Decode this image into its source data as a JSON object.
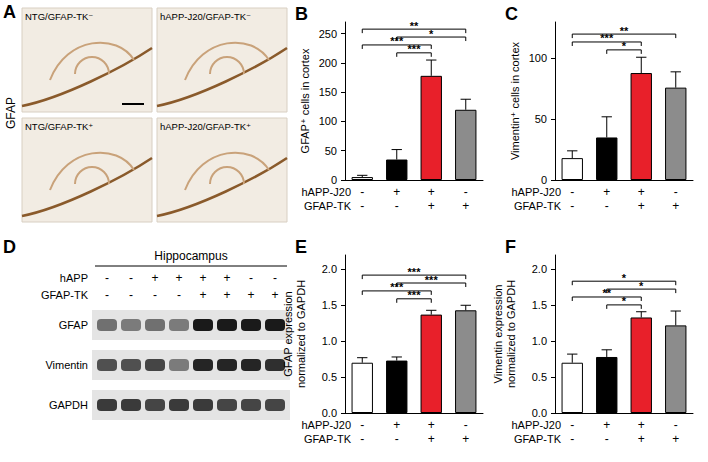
{
  "panels": {
    "A": {
      "letter": "A",
      "stain": "GFAP",
      "images": [
        "NTG/GFAP-TK⁻",
        "hAPP-J20/GFAP-TK⁻",
        "NTG/GFAP-TK⁺",
        "hAPP-J20/GFAP-TK⁺"
      ]
    },
    "D": {
      "letter": "D",
      "title": "Hippocampus",
      "rows": [
        {
          "label": "hAPP",
          "values": [
            "-",
            "-",
            "+",
            "+",
            "+",
            "+",
            "-",
            "-"
          ]
        },
        {
          "label": "GFAP-TK",
          "values": [
            "-",
            "-",
            "-",
            "-",
            "+",
            "+",
            "+",
            "+"
          ]
        }
      ],
      "blots": [
        {
          "label": "GFAP",
          "intensity": [
            0.55,
            0.5,
            0.55,
            0.5,
            0.95,
            0.95,
            0.95,
            0.95
          ]
        },
        {
          "label": "Vimentin",
          "intensity": [
            0.7,
            0.7,
            0.75,
            0.5,
            0.9,
            0.9,
            0.9,
            0.85
          ]
        },
        {
          "label": "GAPDH",
          "intensity": [
            0.8,
            0.8,
            0.75,
            0.8,
            0.8,
            0.75,
            0.75,
            0.75
          ]
        }
      ]
    }
  },
  "chart_data": [
    {
      "letter": "B",
      "type": "bar",
      "ylabel": "GFAP⁺ cells in cortex",
      "categories": [
        "-\n-",
        "+\n-",
        "+\n+",
        "-\n+"
      ],
      "category_rows": [
        "hAPP-J20",
        "GFAP-TK"
      ],
      "values": [
        5,
        35,
        178,
        120
      ],
      "errors": [
        3,
        17,
        27,
        18
      ],
      "colors": [
        "#ffffff",
        "#000000",
        "#e8202a",
        "#8c8c8c"
      ],
      "ylim": [
        0,
        270
      ],
      "yticks": [
        0,
        50,
        100,
        150,
        200,
        250
      ],
      "significance": [
        {
          "from": 1,
          "to": 2,
          "label": "***"
        },
        {
          "from": 0,
          "to": 2,
          "label": "***"
        },
        {
          "from": 1,
          "to": 3,
          "label": "*"
        },
        {
          "from": 0,
          "to": 3,
          "label": "**"
        }
      ]
    },
    {
      "letter": "C",
      "type": "bar",
      "ylabel": "Vimentin⁺ cells in cortex",
      "categories": [
        "-\n-",
        "+\n-",
        "+\n+",
        "-\n+"
      ],
      "category_rows": [
        "hAPP-J20",
        "GFAP-TK"
      ],
      "values": [
        18,
        35,
        88,
        76
      ],
      "errors": [
        6,
        17,
        13,
        13
      ],
      "colors": [
        "#ffffff",
        "#000000",
        "#e8202a",
        "#8c8c8c"
      ],
      "ylim": [
        0,
        130
      ],
      "yticks": [
        0,
        50,
        100
      ],
      "significance": [
        {
          "from": 1,
          "to": 2,
          "label": "*"
        },
        {
          "from": 0,
          "to": 2,
          "label": "***"
        },
        {
          "from": 0,
          "to": 3,
          "label": "**"
        }
      ]
    },
    {
      "letter": "E",
      "type": "bar",
      "ylabel": "GFAP expression normalized to GAPDH",
      "categories": [
        "-\n-",
        "+\n-",
        "+\n+",
        "-\n+"
      ],
      "category_rows": [
        "hAPP-J20",
        "GFAP-TK"
      ],
      "values": [
        0.7,
        0.73,
        1.37,
        1.43
      ],
      "errors": [
        0.07,
        0.05,
        0.06,
        0.07
      ],
      "colors": [
        "#ffffff",
        "#000000",
        "#e8202a",
        "#8c8c8c"
      ],
      "ylim": [
        0,
        2.2
      ],
      "yticks": [
        {
          "value": 0,
          "label": "0.0"
        },
        0.5,
        {
          "value": 1,
          "label": "1.0"
        },
        1.5,
        {
          "value": 2,
          "label": "2.0"
        }
      ],
      "significance": [
        {
          "from": 1,
          "to": 2,
          "label": "***"
        },
        {
          "from": 0,
          "to": 2,
          "label": "***"
        },
        {
          "from": 1,
          "to": 3,
          "label": "***"
        },
        {
          "from": 0,
          "to": 3,
          "label": "***"
        }
      ]
    },
    {
      "letter": "F",
      "type": "bar",
      "ylabel": "Vimentin expression normalized to GAPDH",
      "categories": [
        "-\n-",
        "+\n-",
        "+\n+",
        "-\n+"
      ],
      "category_rows": [
        "hAPP-J20",
        "GFAP-TK"
      ],
      "values": [
        0.7,
        0.78,
        1.33,
        1.22
      ],
      "errors": [
        0.12,
        0.1,
        0.08,
        0.2
      ],
      "colors": [
        "#ffffff",
        "#000000",
        "#e8202a",
        "#8c8c8c"
      ],
      "ylim": [
        0,
        2.2
      ],
      "yticks": [
        {
          "value": 0,
          "label": "0.0"
        },
        0.5,
        {
          "value": 1,
          "label": "1.0"
        },
        1.5,
        {
          "value": 2,
          "label": "2.0"
        }
      ],
      "significance": [
        {
          "from": 1,
          "to": 2,
          "label": "*"
        },
        {
          "from": 0,
          "to": 2,
          "label": "**"
        },
        {
          "from": 1,
          "to": 3,
          "label": "*"
        },
        {
          "from": 0,
          "to": 3,
          "label": "*"
        }
      ]
    }
  ]
}
